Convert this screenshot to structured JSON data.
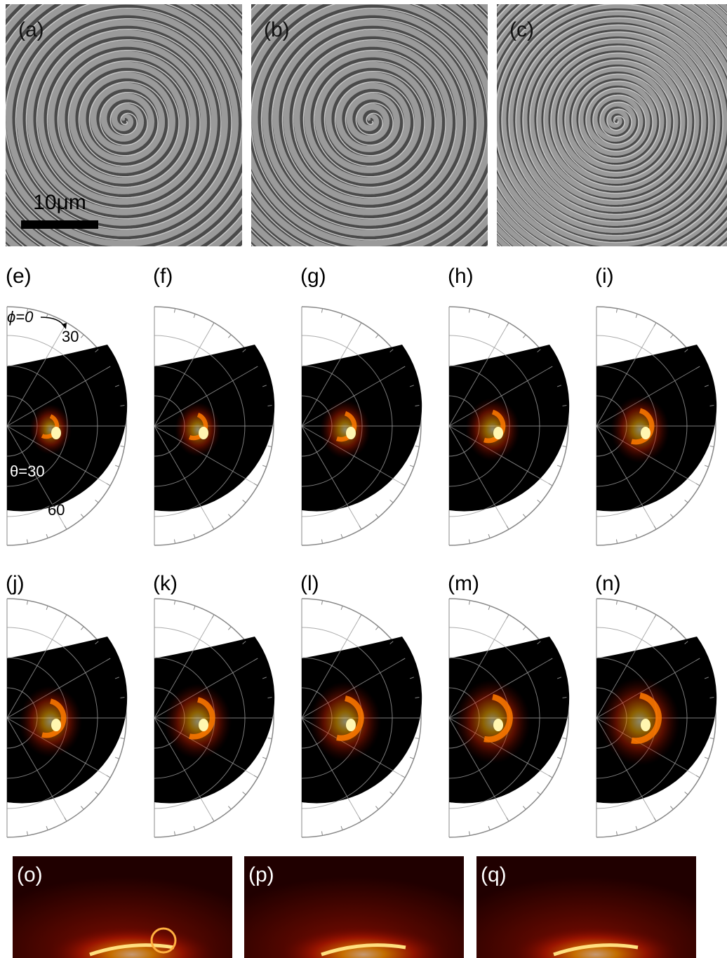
{
  "sem": [
    {
      "label": "(a)"
    },
    {
      "label": "(b)"
    },
    {
      "label": "(c)"
    }
  ],
  "scale_bar": "10μm",
  "polar": [
    {
      "label": "(e)"
    },
    {
      "label": "(f)"
    },
    {
      "label": "(g)"
    },
    {
      "label": "(h)"
    },
    {
      "label": "(i)"
    },
    {
      "label": "(j)"
    },
    {
      "label": "(k)"
    },
    {
      "label": "(l)"
    },
    {
      "label": "(m)"
    },
    {
      "label": "(n)"
    }
  ],
  "polar_annotations": {
    "phi": "ϕ=0",
    "phi_ring": "30",
    "theta": "θ=30",
    "theta_ring": "60"
  },
  "camera": [
    {
      "label": "(o)"
    },
    {
      "label": "(p)"
    },
    {
      "label": "(q)"
    }
  ]
}
